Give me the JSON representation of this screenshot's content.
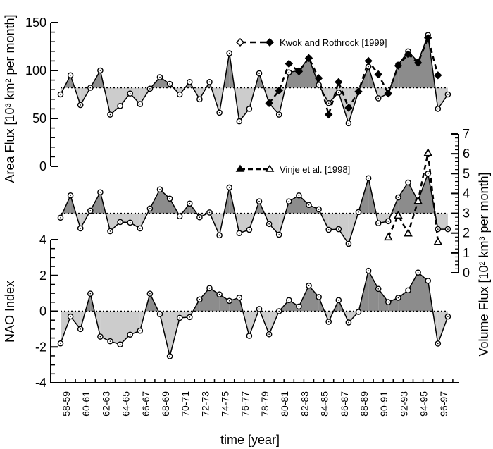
{
  "chart_data": [
    {
      "type": "area",
      "panel": "top",
      "ylabel": "Area Flux [10³ km² per month]",
      "ylim": [
        0,
        150
      ],
      "yticks": [
        "0",
        "50",
        "100",
        "150"
      ],
      "mean_line": 82,
      "series": [
        {
          "values": [
            75,
            95,
            64,
            82,
            100,
            54,
            63,
            76,
            65,
            81,
            93,
            86,
            75,
            88,
            70,
            88,
            56,
            118,
            47,
            60,
            97,
            66,
            54,
            98,
            100,
            113,
            85,
            66,
            77,
            45,
            78,
            104,
            71,
            76,
            106,
            120,
            109,
            137,
            60,
            75
          ]
        },
        {
          "name": "Kwok and Rothrock [1999]",
          "start_index": 21,
          "values": [
            66,
            79,
            107,
            99,
            113,
            92,
            54,
            88,
            61,
            78,
            110,
            96,
            76,
            105,
            117,
            108,
            134,
            95
          ]
        }
      ]
    },
    {
      "type": "area",
      "panel": "middle",
      "ylabel": "Volume Flux [10² km³ per month]",
      "ylim": [
        0,
        7
      ],
      "yticks": [
        "0",
        "1",
        "2",
        "3",
        "4",
        "5",
        "6",
        "7"
      ],
      "mean_line": 3.0,
      "series": [
        {
          "values": [
            2.78,
            3.9,
            2.24,
            3.13,
            4.06,
            2.1,
            2.56,
            2.53,
            2.24,
            3.24,
            4.2,
            3.74,
            2.85,
            3.49,
            2.8,
            3.04,
            1.89,
            4.3,
            2.0,
            2.17,
            3.6,
            2.46,
            1.92,
            3.6,
            3.9,
            3.42,
            3.2,
            2.17,
            2.2,
            1.46,
            3.06,
            4.77,
            2.5,
            2.6,
            3.8,
            4.55,
            3.63,
            5.0,
            2.2,
            2.2
          ]
        },
        {
          "name": "Vinje et al. [1998]",
          "start_index": 33,
          "values": [
            1.8,
            2.9,
            2.0,
            3.63,
            6.05,
            1.57
          ]
        }
      ]
    },
    {
      "type": "area",
      "panel": "bottom",
      "ylabel": "NAO Index",
      "ylim": [
        -4,
        4
      ],
      "yticks": [
        "-4",
        "-2",
        "0",
        "2",
        "4"
      ],
      "mean_line": 0,
      "series": [
        {
          "values": [
            -1.8,
            -0.3,
            -1.0,
            0.98,
            -1.42,
            -1.68,
            -1.86,
            -1.31,
            -1.09,
            0.98,
            -0.16,
            -2.52,
            -0.37,
            -0.33,
            0.66,
            1.29,
            0.94,
            0.58,
            0.76,
            -1.38,
            0.12,
            -1.29,
            0.0,
            0.62,
            0.26,
            1.43,
            0.79,
            -0.59,
            0.62,
            -0.63,
            -0.04,
            2.26,
            1.25,
            0.51,
            0.75,
            1.17,
            2.16,
            1.7,
            -1.81,
            -0.3
          ]
        }
      ]
    }
  ],
  "xaxis": {
    "label": "time [year]",
    "ticklabels": [
      "58-59",
      "60-61",
      "62-63",
      "64-65",
      "66-67",
      "68-69",
      "70-71",
      "72-73",
      "74-75",
      "76-77",
      "78-79",
      "80-81",
      "82-83",
      "84-85",
      "86-87",
      "88-89",
      "90-91",
      "92-93",
      "94-95",
      "96-97"
    ]
  },
  "colors": {
    "above_mean": "#8c8c8c",
    "below_mean": "#cccccc",
    "line": "#000000"
  }
}
